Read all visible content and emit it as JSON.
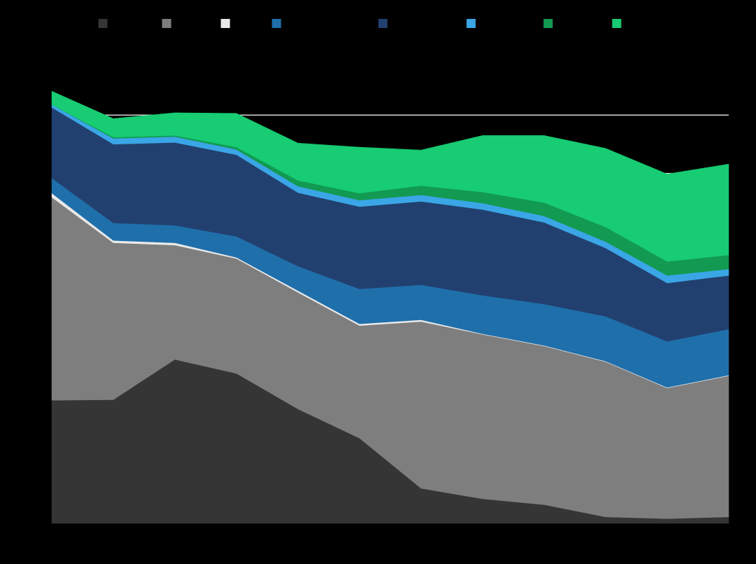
{
  "chart_data": {
    "type": "area",
    "stacked": true,
    "title": "",
    "xlabel": "",
    "ylabel": "",
    "grid": true,
    "legend_position": "top",
    "x": [
      1,
      2,
      3,
      4,
      5,
      6,
      7,
      8,
      9,
      10,
      11,
      12
    ],
    "ylim": [
      0,
      8000
    ],
    "y_gridlines": [
      6000,
      7000
    ],
    "series": [
      {
        "color": "#353535",
        "values": [
          2110,
          2120,
          2810,
          2570,
          1960,
          1460,
          600,
          420,
          320,
          110,
          80,
          110
        ]
      },
      {
        "color": "#7e7e7e",
        "values": [
          3480,
          2690,
          1960,
          1970,
          2000,
          1930,
          2860,
          2820,
          2720,
          2660,
          2240,
          2420
        ]
      },
      {
        "color": "#e9e9e9",
        "values": [
          70,
          40,
          40,
          20,
          30,
          30,
          30,
          10,
          10,
          10,
          10,
          10
        ]
      },
      {
        "color": "#1f6fab",
        "values": [
          260,
          300,
          300,
          360,
          420,
          600,
          600,
          660,
          710,
          770,
          790,
          790
        ]
      },
      {
        "color": "#22406f",
        "values": [
          1210,
          1350,
          1420,
          1400,
          1260,
          1410,
          1430,
          1470,
          1400,
          1170,
          1000,
          920
        ]
      },
      {
        "color": "#3aa6e6",
        "values": [
          50,
          100,
          100,
          90,
          110,
          110,
          110,
          110,
          110,
          110,
          130,
          110
        ]
      },
      {
        "color": "#129a52",
        "values": [
          0,
          20,
          20,
          40,
          100,
          120,
          160,
          190,
          230,
          250,
          240,
          240
        ]
      },
      {
        "color": "#17cc72",
        "values": [
          230,
          320,
          390,
          580,
          640,
          790,
          610,
          970,
          1150,
          1350,
          1500,
          1560
        ]
      }
    ]
  }
}
